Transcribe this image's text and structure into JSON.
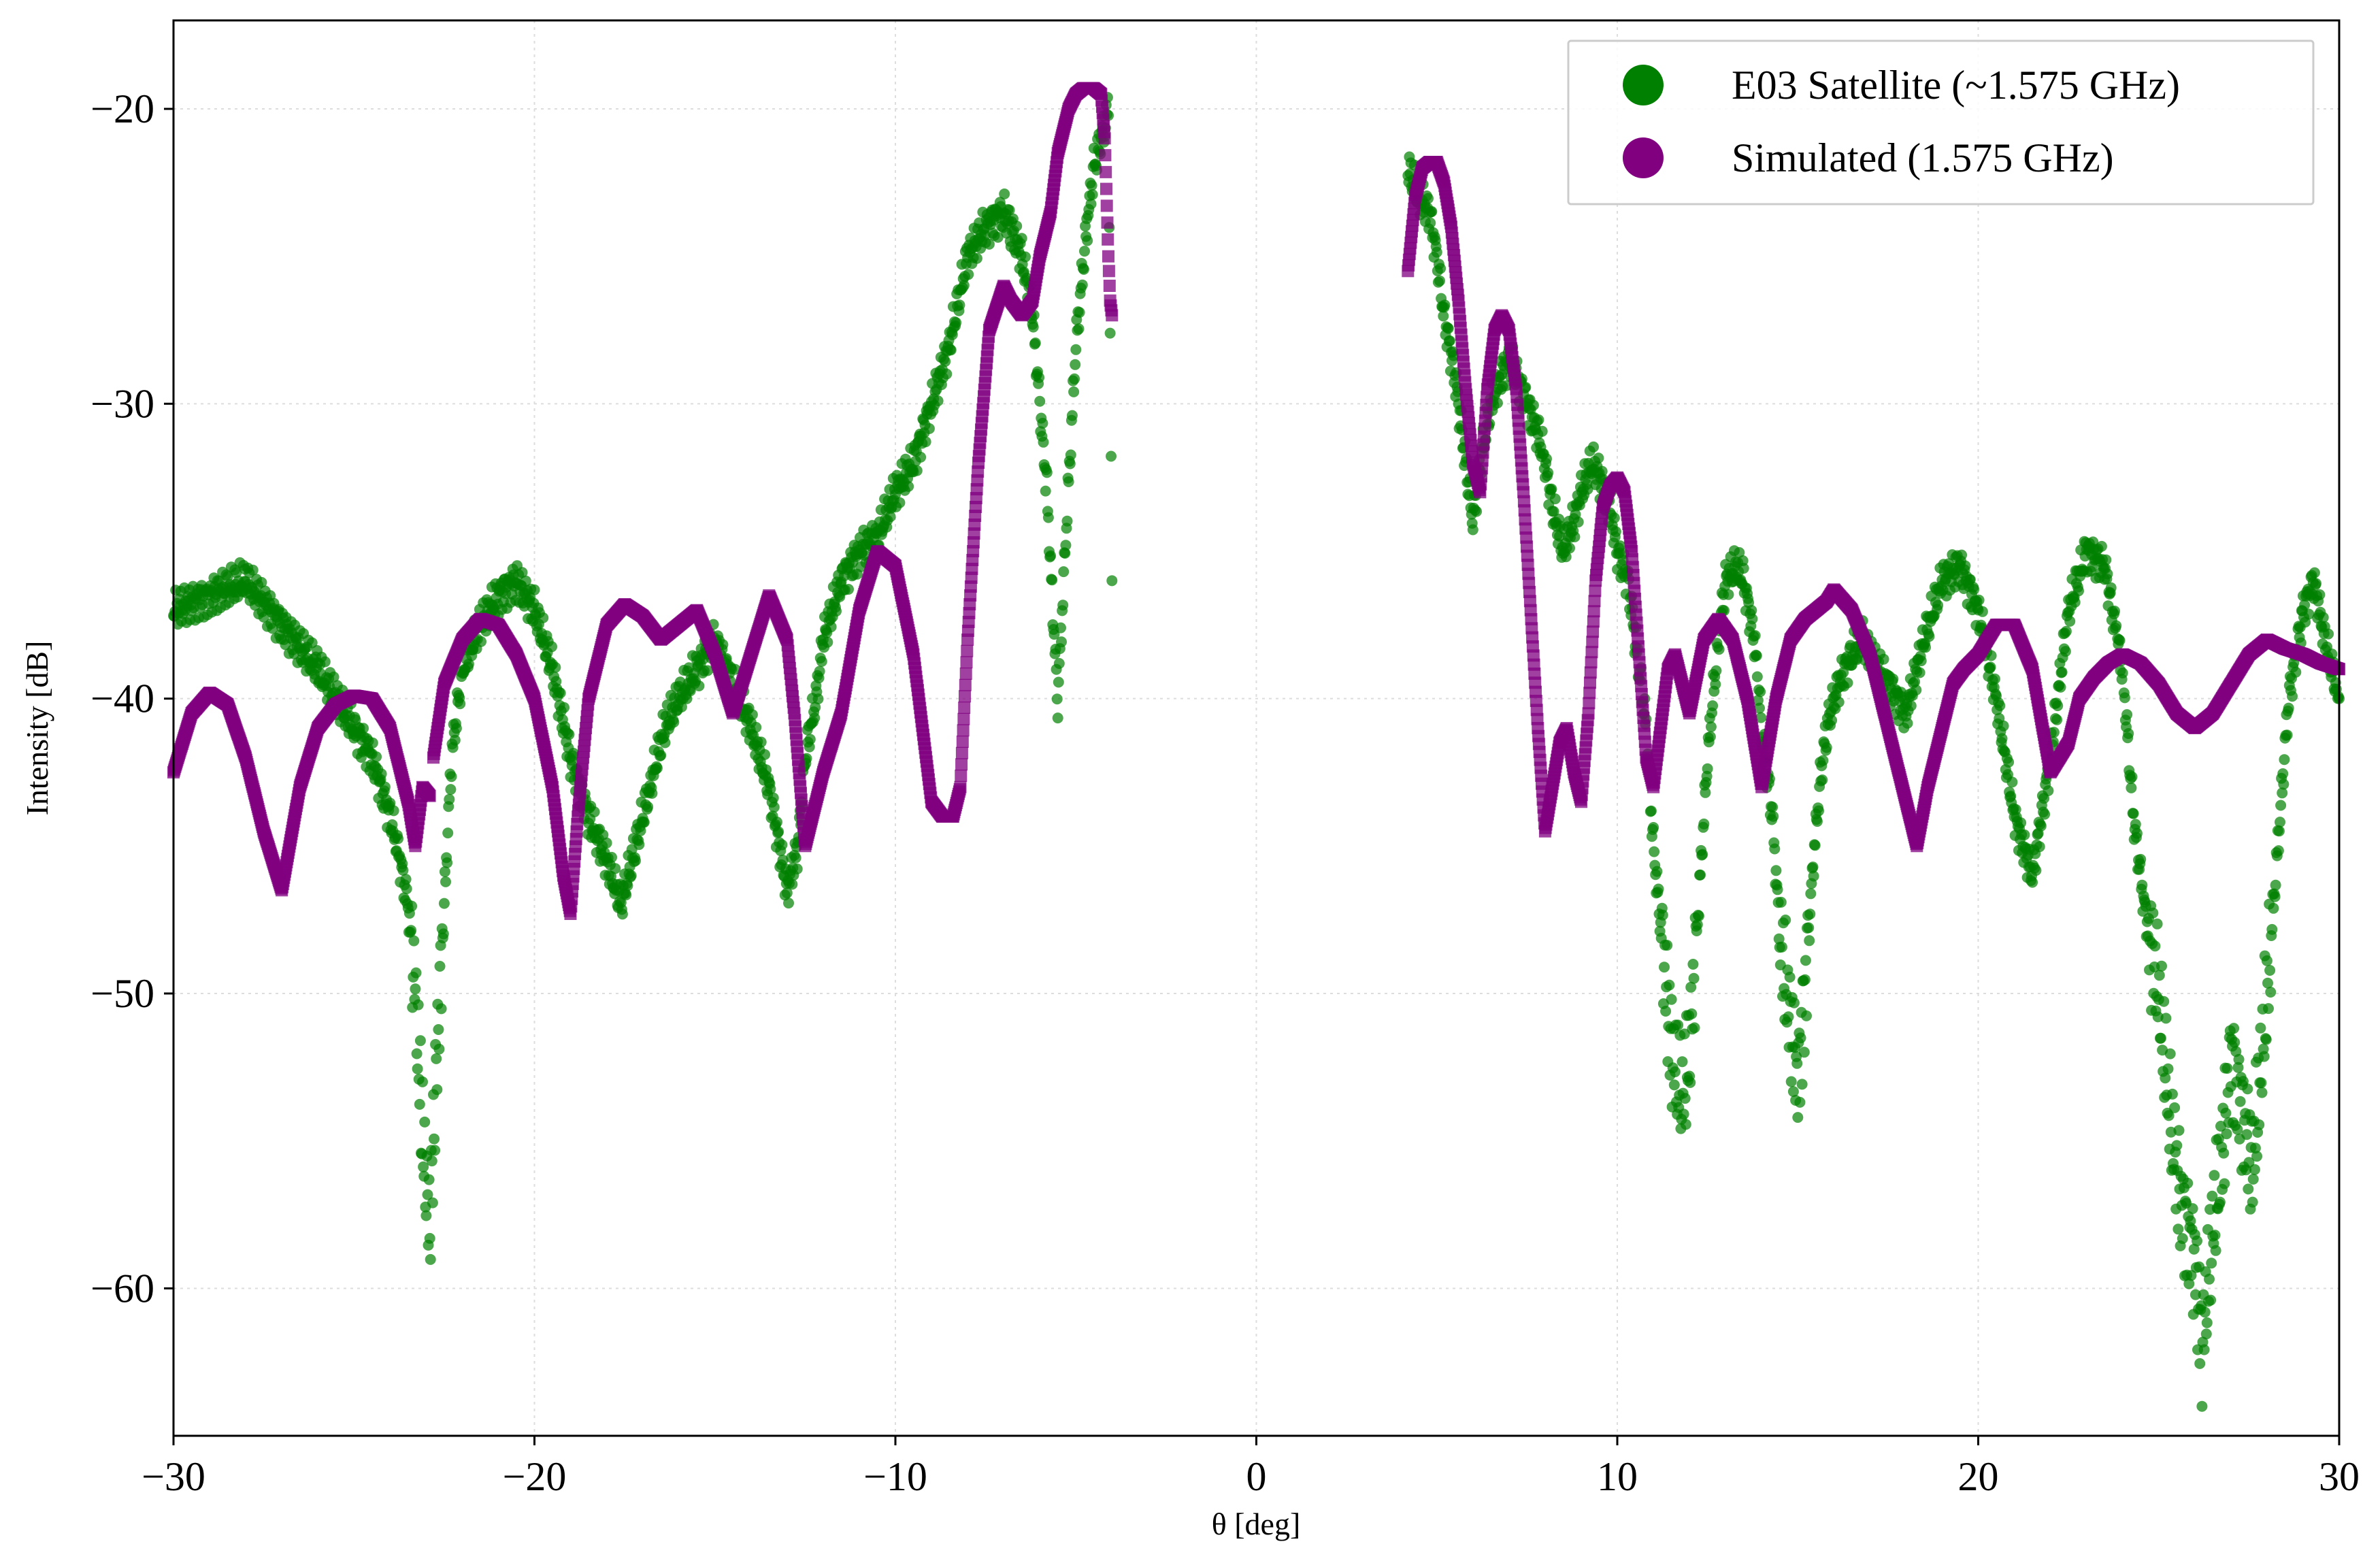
{
  "chart_data": {
    "type": "scatter",
    "xlabel": "θ [deg]",
    "ylabel": "Intensity [dB]",
    "xlim": [
      -30,
      30
    ],
    "ylim": [
      -65,
      -17
    ],
    "xticks": [
      -30,
      -20,
      -10,
      0,
      10,
      20,
      30
    ],
    "yticks": [
      -20,
      -30,
      -40,
      -50,
      -60
    ],
    "xtick_labels": [
      "−30",
      "−20",
      "−10",
      "0",
      "10",
      "20",
      "30"
    ],
    "ytick_labels": [
      "−20",
      "−30",
      "−40",
      "−50",
      "−60"
    ],
    "grid": true,
    "legend_position": "top-right",
    "series": [
      {
        "name": "E03 Satellite (~1.575 GHz)",
        "color": "#008000",
        "marker": "circle",
        "segments": [
          {
            "x": [
              -30,
              -29,
              -28,
              -27,
              -26,
              -25.5,
              -25,
              -24.5,
              -24,
              -23.8,
              -23.5,
              -23.3,
              -23.1,
              -22.9,
              -22.7,
              -22.5,
              -22.3,
              -22,
              -21.5,
              -21,
              -20.5,
              -20,
              -19.5,
              -19,
              -18.5,
              -18,
              -17.6,
              -17.2,
              -16.8,
              -16.4,
              -16,
              -15.5,
              -15,
              -14.5,
              -14,
              -13.5,
              -13,
              -12.7,
              -12.5,
              -12.2,
              -12,
              -11.5,
              -11,
              -10.5,
              -10,
              -9.5,
              -9,
              -8.5,
              -8,
              -7.5,
              -7,
              -6.8,
              -6.5,
              -6.2,
              -6,
              -5.8,
              -5.6,
              -5.5,
              -5.3,
              -5,
              -4.7,
              -4.5,
              -4.3,
              -4.2,
              -4.1,
              -4.05,
              -4
            ],
            "y": [
              -37,
              -36.5,
              -36,
              -37.5,
              -39,
              -40,
              -41,
              -42,
              -44,
              -45,
              -47,
              -50,
              -55,
              -58,
              -52,
              -47,
              -42,
              -39,
              -37.5,
              -36.5,
              -36,
              -37,
              -39,
              -42,
              -44,
              -45.5,
              -47,
              -45,
              -43,
              -41,
              -40,
              -39,
              -38,
              -39.5,
              -41,
              -43,
              -46.5,
              -45,
              -42,
              -40,
              -38,
              -36,
              -35,
              -34.5,
              -33,
              -32,
              -30,
              -28,
              -25,
              -24,
              -23.5,
              -24,
              -25,
              -27,
              -30,
              -33,
              -38,
              -40,
              -35,
              -28,
              -24,
              -22,
              -21,
              -20.5,
              -20,
              -28,
              -36
            ]
          },
          {
            "x": [
              4.2,
              4.5,
              4.8,
              5,
              5.2,
              5.5,
              5.8,
              6,
              6.2,
              6.5,
              6.8,
              7,
              7.2,
              7.5,
              7.8,
              8,
              8.2,
              8.5,
              8.8,
              9,
              9.3,
              9.5,
              9.8,
              10,
              10.3,
              10.5,
              10.8,
              11,
              11.3,
              11.5,
              11.8,
              12,
              12.2,
              12.5,
              12.8,
              13,
              13.3,
              13.5,
              13.8,
              14,
              14.3,
              14.5,
              14.8,
              15,
              15.2,
              15.4,
              15.6,
              15.8,
              16,
              16.3,
              16.5,
              16.8,
              17,
              17.5,
              18,
              18.5,
              19,
              19.5,
              20,
              20.5,
              21,
              21.5,
              22,
              22.5,
              23,
              23.5,
              24,
              24.3,
              24.6,
              25,
              25.3,
              25.6,
              26,
              26.2,
              26.5,
              26.8,
              27,
              27.3,
              27.6,
              28,
              28.3,
              28.6,
              29,
              29.3,
              29.6,
              30
            ],
            "y": [
              -22,
              -23,
              -23.5,
              -25,
              -27,
              -29,
              -32,
              -34,
              -32,
              -30,
              -29,
              -28.5,
              -29,
              -30,
              -31,
              -32,
              -33.5,
              -35,
              -34,
              -33,
              -32,
              -32.5,
              -33.5,
              -35,
              -36,
              -38,
              -41,
              -45,
              -49,
              -52,
              -53.5,
              -52,
              -48,
              -42,
              -38,
              -36,
              -35.5,
              -36,
              -38,
              -41,
              -44,
              -48,
              -51,
              -53,
              -50,
              -46,
              -43,
              -41,
              -40,
              -39,
              -38.5,
              -38,
              -38.5,
              -39.5,
              -40.5,
              -38,
              -36,
              -35.5,
              -37,
              -40,
              -44,
              -46,
              -42,
              -37,
              -35,
              -35.5,
              -39,
              -44,
              -47,
              -50,
              -54,
              -57,
              -59,
              -62,
              -58,
              -55,
              -52,
              -54,
              -56,
              -50,
              -45,
              -40,
              -37,
              -36,
              -38,
              -40
            ]
          }
        ]
      },
      {
        "name": "Simulated (1.575 GHz)",
        "color": "#800080",
        "marker": "square",
        "segments": [
          {
            "x": [
              -30,
              -29.5,
              -29,
              -28.5,
              -28,
              -27.5,
              -27,
              -26.5,
              -26,
              -25.5,
              -25,
              -24.5,
              -24,
              -23.5,
              -23.3,
              -23.1,
              -22.9
            ],
            "y": [
              -42.5,
              -40.5,
              -39.8,
              -40.2,
              -42,
              -44.5,
              -46.5,
              -43,
              -41,
              -40.2,
              -39.9,
              -40,
              -41,
              -43.5,
              -45,
              -43,
              -43.3
            ]
          },
          {
            "x": [
              -22.8,
              -22.5,
              -22,
              -21.5,
              -21,
              -20.5,
              -20,
              -19.5,
              -19.2,
              -19,
              -18.8,
              -18.5,
              -18,
              -17.5,
              -17,
              -16.5,
              -16,
              -15.5,
              -15,
              -14.5,
              -14,
              -13.5,
              -13,
              -12.8,
              -12.5,
              -12,
              -11.5,
              -11,
              -10.5,
              -10,
              -9.5,
              -9,
              -8.7,
              -8.4,
              -8.2,
              -8,
              -7.7,
              -7.4,
              -7,
              -6.8,
              -6.5,
              -6.2,
              -6,
              -5.7,
              -5.5,
              -5.2,
              -5,
              -4.8,
              -4.5,
              -4.3,
              -4.2,
              -4.1,
              -4.05,
              -4
            ],
            "y": [
              -42,
              -39.5,
              -38,
              -37.3,
              -37.5,
              -38.5,
              -40,
              -43,
              -46,
              -47.3,
              -44,
              -40,
              -37.5,
              -36.8,
              -37.2,
              -38,
              -37.5,
              -37,
              -38.5,
              -40.5,
              -38.5,
              -36.5,
              -38,
              -40.5,
              -45,
              -42.5,
              -40.5,
              -37,
              -35,
              -35.5,
              -38.5,
              -43.5,
              -44,
              -44,
              -43,
              -38,
              -32,
              -27.5,
              -26,
              -26.5,
              -27,
              -26.5,
              -25,
              -23.5,
              -21.5,
              -20,
              -19.5,
              -19.3,
              -19.3,
              -19.5,
              -21,
              -25,
              -26.5,
              -27
            ]
          },
          {
            "x": [
              4.2,
              4.4,
              4.6,
              4.8,
              5,
              5.2,
              5.4,
              5.6,
              5.8,
              6,
              6.2,
              6.4,
              6.6,
              6.8,
              7,
              7.2,
              7.4,
              7.6,
              7.8,
              8,
              8.2,
              8.4,
              8.6,
              8.8,
              9,
              9.2,
              9.4,
              9.6,
              9.8,
              10,
              10.2,
              10.4,
              10.6,
              10.8,
              11,
              11.2,
              11.4,
              11.6,
              11.8,
              12,
              12.4,
              12.8,
              13.2,
              13.6,
              14,
              14.4,
              14.8,
              15.2,
              15.5,
              15.8,
              16,
              16.5,
              17,
              17.5,
              18,
              18.3,
              18.6,
              19,
              19.3,
              19.6,
              20,
              20.5,
              21,
              21.5,
              22,
              22.5,
              22.8,
              23.2,
              23.6,
              24,
              24.5,
              25,
              25.5,
              26,
              26.5,
              27,
              27.5,
              28,
              28.5,
              29,
              29.5,
              30
            ],
            "y": [
              -25.5,
              -23,
              -22,
              -21.8,
              -21.8,
              -22.5,
              -24,
              -26.5,
              -29.5,
              -32,
              -33,
              -29.5,
              -27.5,
              -27,
              -27.5,
              -29.5,
              -33,
              -37,
              -41,
              -44.5,
              -43,
              -41.5,
              -41,
              -42.5,
              -43.5,
              -40.5,
              -36,
              -33.5,
              -32.8,
              -32.5,
              -33,
              -35,
              -38.5,
              -42,
              -43,
              -41,
              -39,
              -38.5,
              -39.5,
              -40.5,
              -38,
              -37.3,
              -38,
              -40,
              -43,
              -40,
              -38,
              -37.3,
              -37,
              -36.7,
              -36.3,
              -37,
              -38.5,
              -41,
              -43.5,
              -45,
              -43,
              -41,
              -39.5,
              -39,
              -38.5,
              -37.5,
              -37.5,
              -39,
              -42.5,
              -41.5,
              -40,
              -39.3,
              -38.8,
              -38.5,
              -38.8,
              -39.5,
              -40.5,
              -41,
              -40.5,
              -39.5,
              -38.5,
              -38,
              -38.3,
              -38.5,
              -38.8,
              -39
            ]
          }
        ]
      }
    ]
  }
}
